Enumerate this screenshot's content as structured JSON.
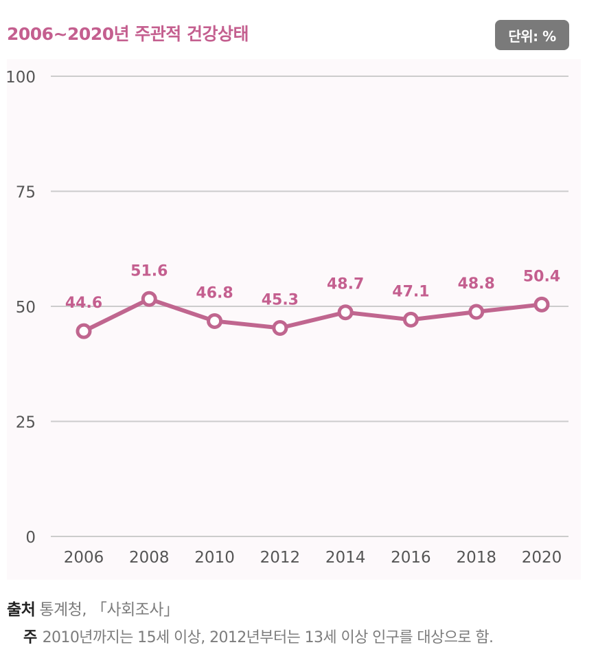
{
  "header": {
    "title": "2006~2020년 주관적 건강상태",
    "unit_badge": "단위: %"
  },
  "footer": {
    "source_label": "출처",
    "source_text": "통계청, 「사회조사」",
    "note_label": "주",
    "note_text": "2010년까지는 15세 이상, 2012년부터는 13세 이상 인구를 대상으로 함."
  },
  "colors": {
    "accent": "#c45f8f",
    "line": "#c0668f",
    "grid": "#cccccc",
    "axis_text": "#555555",
    "badge_bg": "#7a7a7a",
    "plot_bg": "#fdf9fb"
  },
  "chart_data": {
    "type": "line",
    "title": "2006~2020년 주관적 건강상태",
    "x": [
      "2006",
      "2008",
      "2010",
      "2012",
      "2014",
      "2016",
      "2018",
      "2020"
    ],
    "series": [
      {
        "values": [
          44.6,
          51.6,
          46.8,
          45.3,
          48.7,
          47.1,
          48.8,
          50.4
        ]
      }
    ],
    "data_labels": [
      "44.6",
      "51.6",
      "46.8",
      "45.3",
      "48.7",
      "47.1",
      "48.8",
      "50.4"
    ],
    "yticks": [
      0,
      25,
      50,
      75,
      100
    ],
    "ylim": [
      0,
      100
    ],
    "unit": "%",
    "grid": true,
    "legend": "none"
  }
}
